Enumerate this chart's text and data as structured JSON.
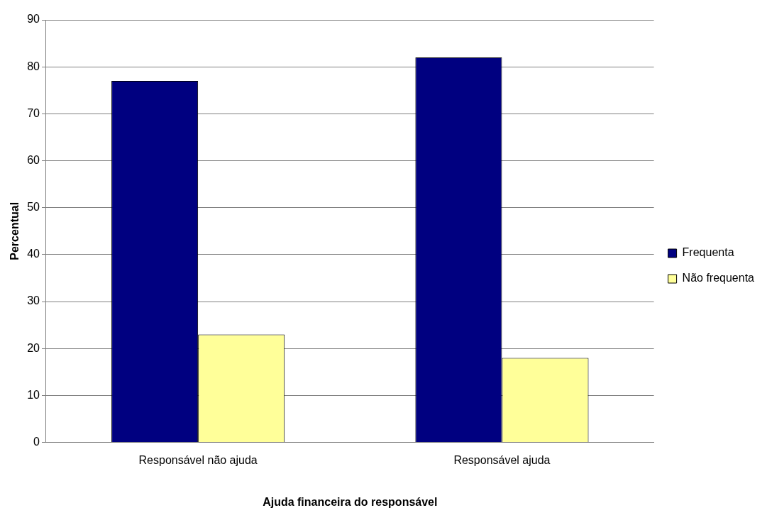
{
  "chart_data": {
    "type": "bar",
    "xlabel": "Ajuda financeira do responsável",
    "ylabel": "Percentual",
    "categories": [
      "Responsável não ajuda",
      "Responsável ajuda"
    ],
    "series": [
      {
        "name": "Frequenta",
        "color": "#000080",
        "values": [
          77,
          82
        ]
      },
      {
        "name": "Não frequenta",
        "color": "#ffff99",
        "values": [
          23,
          18
        ]
      }
    ],
    "ylim": [
      0,
      90
    ],
    "yticks": [
      0,
      10,
      20,
      30,
      40,
      50,
      60,
      70,
      80,
      90
    ],
    "grid": "y",
    "legend": "right"
  }
}
